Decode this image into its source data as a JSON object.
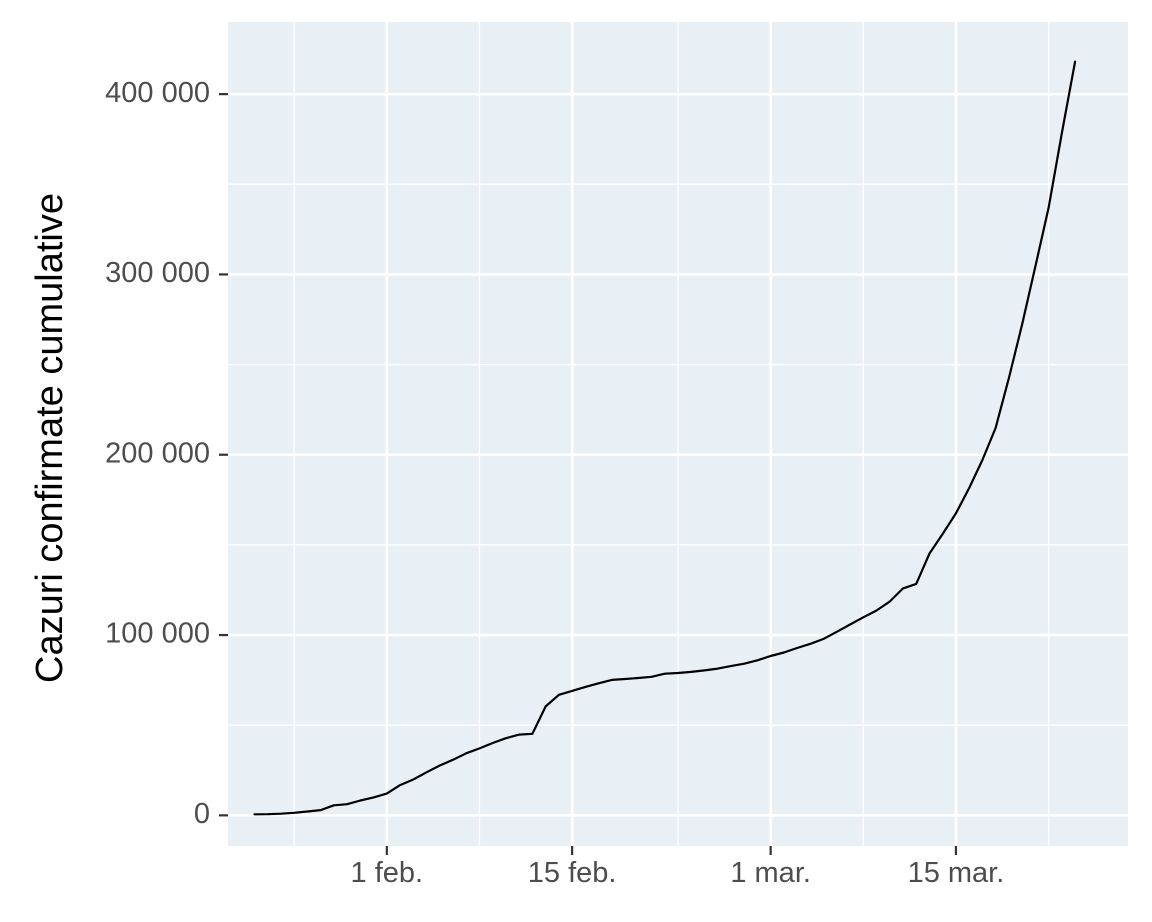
{
  "chart_data": {
    "type": "line",
    "title": "",
    "xlabel": "",
    "ylabel": "Cazuri confirmate cumulative",
    "xlim": [
      "2020-01-20",
      "2020-03-28"
    ],
    "ylim": [
      -17000,
      440000
    ],
    "grid": true,
    "legend": "none",
    "x_ticks": [
      {
        "value": "2020-02-01",
        "label": "1 feb."
      },
      {
        "value": "2020-02-15",
        "label": "15 feb."
      },
      {
        "value": "2020-03-01",
        "label": "1 mar."
      },
      {
        "value": "2020-03-15",
        "label": "15 mar."
      }
    ],
    "y_ticks": [
      {
        "value": 0,
        "label": "0"
      },
      {
        "value": 100000,
        "label": "100 000"
      },
      {
        "value": 200000,
        "label": "200 000"
      },
      {
        "value": 300000,
        "label": "300 000"
      },
      {
        "value": 400000,
        "label": "400 000"
      }
    ],
    "series": [
      {
        "color": "#000000",
        "points": [
          [
            "2020-01-22",
            555
          ],
          [
            "2020-01-23",
            654
          ],
          [
            "2020-01-24",
            941
          ],
          [
            "2020-01-25",
            1434
          ],
          [
            "2020-01-26",
            2118
          ],
          [
            "2020-01-27",
            2927
          ],
          [
            "2020-01-28",
            5578
          ],
          [
            "2020-01-29",
            6166
          ],
          [
            "2020-01-30",
            8234
          ],
          [
            "2020-01-31",
            9927
          ],
          [
            "2020-02-01",
            12038
          ],
          [
            "2020-02-02",
            16787
          ],
          [
            "2020-02-03",
            19881
          ],
          [
            "2020-02-04",
            23892
          ],
          [
            "2020-02-05",
            27635
          ],
          [
            "2020-02-06",
            30817
          ],
          [
            "2020-02-07",
            34391
          ],
          [
            "2020-02-08",
            37120
          ],
          [
            "2020-02-09",
            40150
          ],
          [
            "2020-02-10",
            42762
          ],
          [
            "2020-02-11",
            44802
          ],
          [
            "2020-02-12",
            45221
          ],
          [
            "2020-02-13",
            60368
          ],
          [
            "2020-02-14",
            66885
          ],
          [
            "2020-02-15",
            69030
          ],
          [
            "2020-02-16",
            71224
          ],
          [
            "2020-02-17",
            73258
          ],
          [
            "2020-02-18",
            75136
          ],
          [
            "2020-02-19",
            75639
          ],
          [
            "2020-02-20",
            76197
          ],
          [
            "2020-02-21",
            76823
          ],
          [
            "2020-02-22",
            78579
          ],
          [
            "2020-02-23",
            78965
          ],
          [
            "2020-02-24",
            79568
          ],
          [
            "2020-02-25",
            80413
          ],
          [
            "2020-02-26",
            81395
          ],
          [
            "2020-02-27",
            82754
          ],
          [
            "2020-02-28",
            84120
          ],
          [
            "2020-02-29",
            86011
          ],
          [
            "2020-03-01",
            88369
          ],
          [
            "2020-03-02",
            90306
          ],
          [
            "2020-03-03",
            92840
          ],
          [
            "2020-03-04",
            95120
          ],
          [
            "2020-03-05",
            97886
          ],
          [
            "2020-03-06",
            101801
          ],
          [
            "2020-03-07",
            105847
          ],
          [
            "2020-03-08",
            109821
          ],
          [
            "2020-03-09",
            113590
          ],
          [
            "2020-03-10",
            118620
          ],
          [
            "2020-03-11",
            125875
          ],
          [
            "2020-03-12",
            128352
          ],
          [
            "2020-03-13",
            145205
          ],
          [
            "2020-03-14",
            156101
          ],
          [
            "2020-03-15",
            167454
          ],
          [
            "2020-03-16",
            181574
          ],
          [
            "2020-03-17",
            197102
          ],
          [
            "2020-03-18",
            214821
          ],
          [
            "2020-03-19",
            242570
          ],
          [
            "2020-03-20",
            272208
          ],
          [
            "2020-03-21",
            304507
          ],
          [
            "2020-03-22",
            336953
          ],
          [
            "2020-03-23",
            378235
          ],
          [
            "2020-03-24",
            418045
          ]
        ]
      }
    ]
  }
}
